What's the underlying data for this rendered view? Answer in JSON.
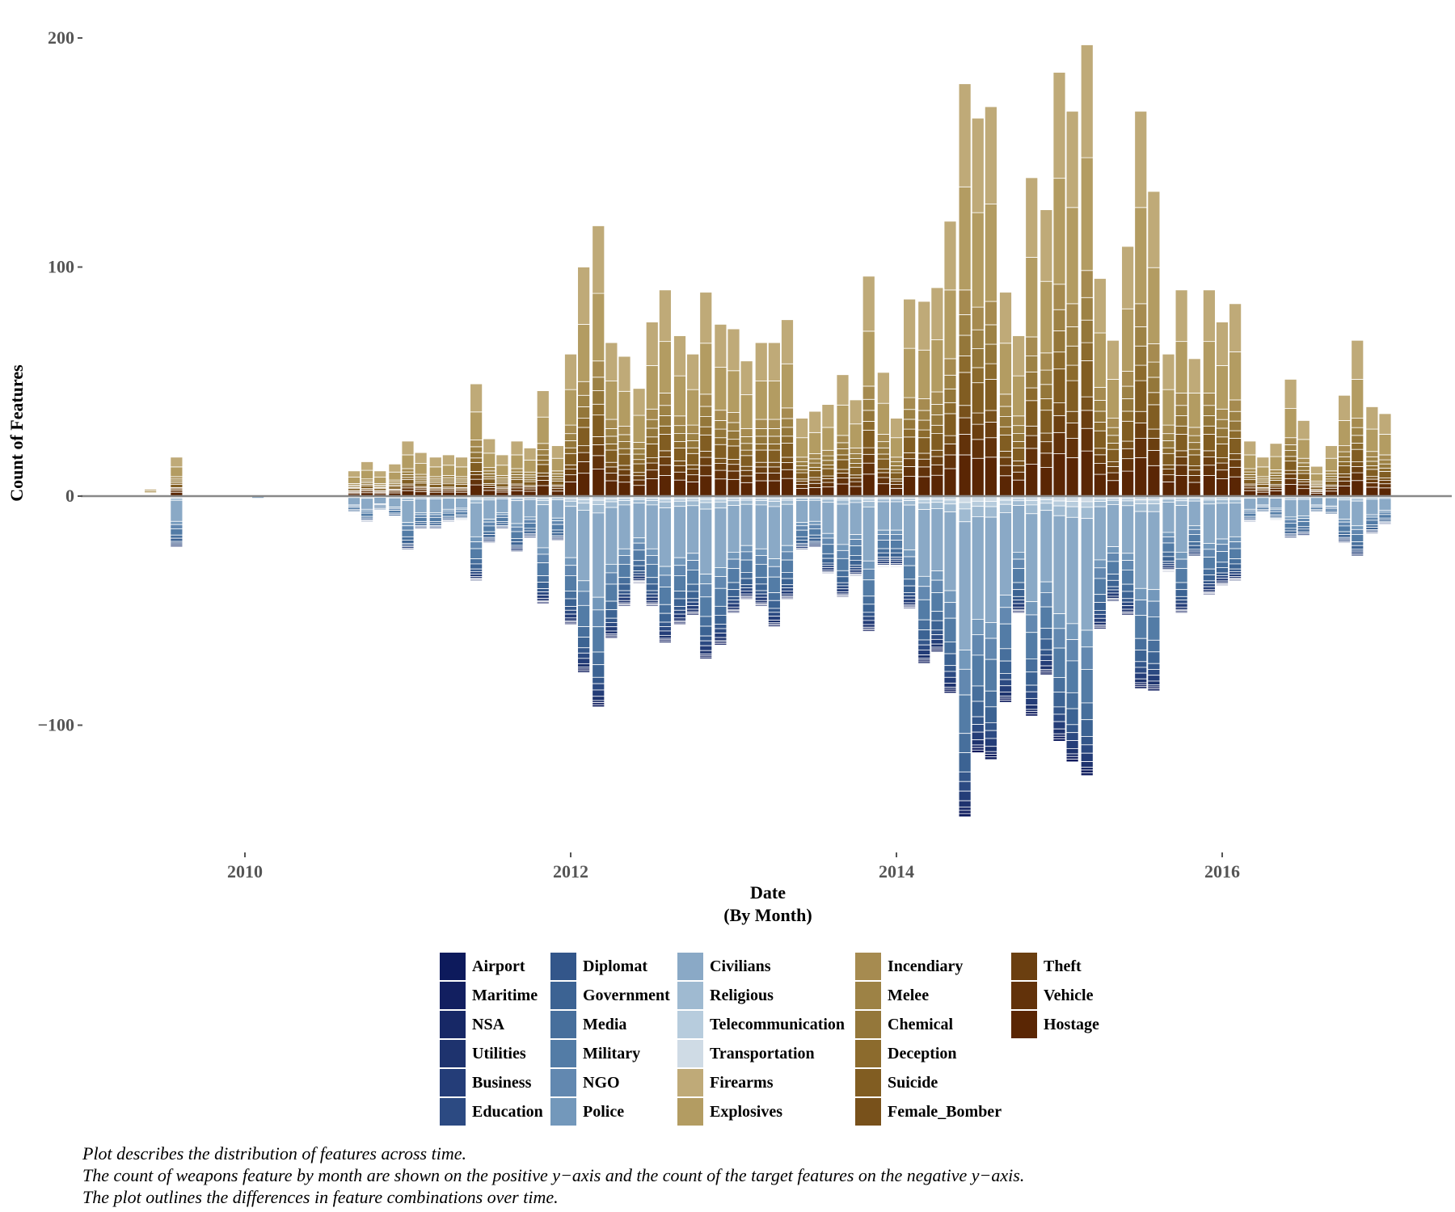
{
  "chart_data": {
    "type": "bar",
    "stacked": true,
    "xlabel": "Date",
    "xlabel_sub": "(By Month)",
    "ylabel": "Count of Features",
    "ylim": [
      -150,
      200
    ],
    "xlim": [
      2008.8,
      2017.3
    ],
    "y_ticks": [
      200,
      100,
      0,
      -100
    ],
    "y_tick_labels": [
      "200",
      "100",
      "0",
      "−100"
    ],
    "x_ticks": [
      2010,
      2012,
      2014,
      2016
    ],
    "x_tick_labels": [
      "2010",
      "2012",
      "2014",
      "2016"
    ],
    "zero_line": true,
    "grid": false,
    "legend_position": "bottom",
    "months": [
      {
        "t": 2009.42,
        "pos": 3,
        "neg": -1
      },
      {
        "t": 2009.58,
        "pos": 17,
        "neg": -23
      },
      {
        "t": 2010.0,
        "pos": 1,
        "neg": -1
      },
      {
        "t": 2010.08,
        "pos": 1,
        "neg": -2
      },
      {
        "t": 2010.67,
        "pos": 11,
        "neg": -8
      },
      {
        "t": 2010.75,
        "pos": 15,
        "neg": -12
      },
      {
        "t": 2010.83,
        "pos": 11,
        "neg": -7
      },
      {
        "t": 2010.92,
        "pos": 14,
        "neg": -10
      },
      {
        "t": 2011.0,
        "pos": 24,
        "neg": -24
      },
      {
        "t": 2011.08,
        "pos": 19,
        "neg": -15
      },
      {
        "t": 2011.17,
        "pos": 17,
        "neg": -15
      },
      {
        "t": 2011.25,
        "pos": 18,
        "neg": -12
      },
      {
        "t": 2011.33,
        "pos": 17,
        "neg": -11
      },
      {
        "t": 2011.42,
        "pos": 49,
        "neg": -37
      },
      {
        "t": 2011.5,
        "pos": 25,
        "neg": -21
      },
      {
        "t": 2011.58,
        "pos": 18,
        "neg": -15
      },
      {
        "t": 2011.67,
        "pos": 24,
        "neg": -25
      },
      {
        "t": 2011.75,
        "pos": 21,
        "neg": -19
      },
      {
        "t": 2011.83,
        "pos": 46,
        "neg": -47
      },
      {
        "t": 2011.92,
        "pos": 22,
        "neg": -20
      },
      {
        "t": 2012.0,
        "pos": 62,
        "neg": -56
      },
      {
        "t": 2012.08,
        "pos": 100,
        "neg": -77
      },
      {
        "t": 2012.17,
        "pos": 118,
        "neg": -92
      },
      {
        "t": 2012.25,
        "pos": 67,
        "neg": -62
      },
      {
        "t": 2012.33,
        "pos": 61,
        "neg": -48
      },
      {
        "t": 2012.42,
        "pos": 47,
        "neg": -38
      },
      {
        "t": 2012.5,
        "pos": 76,
        "neg": -48
      },
      {
        "t": 2012.58,
        "pos": 90,
        "neg": -64
      },
      {
        "t": 2012.67,
        "pos": 70,
        "neg": -56
      },
      {
        "t": 2012.75,
        "pos": 62,
        "neg": -52
      },
      {
        "t": 2012.83,
        "pos": 89,
        "neg": -71
      },
      {
        "t": 2012.92,
        "pos": 75,
        "neg": -65
      },
      {
        "t": 2013.0,
        "pos": 73,
        "neg": -51
      },
      {
        "t": 2013.08,
        "pos": 59,
        "neg": -45
      },
      {
        "t": 2013.17,
        "pos": 67,
        "neg": -48
      },
      {
        "t": 2013.25,
        "pos": 67,
        "neg": -57
      },
      {
        "t": 2013.33,
        "pos": 77,
        "neg": -45
      },
      {
        "t": 2013.42,
        "pos": 34,
        "neg": -24
      },
      {
        "t": 2013.5,
        "pos": 37,
        "neg": -23
      },
      {
        "t": 2013.58,
        "pos": 40,
        "neg": -34
      },
      {
        "t": 2013.67,
        "pos": 53,
        "neg": -44
      },
      {
        "t": 2013.75,
        "pos": 42,
        "neg": -35
      },
      {
        "t": 2013.83,
        "pos": 96,
        "neg": -59
      },
      {
        "t": 2013.92,
        "pos": 54,
        "neg": -31
      },
      {
        "t": 2014.0,
        "pos": 34,
        "neg": -31
      },
      {
        "t": 2014.08,
        "pos": 86,
        "neg": -49
      },
      {
        "t": 2014.17,
        "pos": 85,
        "neg": -73
      },
      {
        "t": 2014.25,
        "pos": 91,
        "neg": -68
      },
      {
        "t": 2014.33,
        "pos": 120,
        "neg": -86
      },
      {
        "t": 2014.42,
        "pos": 180,
        "neg": -140
      },
      {
        "t": 2014.5,
        "pos": 165,
        "neg": -112
      },
      {
        "t": 2014.58,
        "pos": 170,
        "neg": -115
      },
      {
        "t": 2014.67,
        "pos": 89,
        "neg": -90
      },
      {
        "t": 2014.75,
        "pos": 70,
        "neg": -51
      },
      {
        "t": 2014.83,
        "pos": 139,
        "neg": -96
      },
      {
        "t": 2014.92,
        "pos": 125,
        "neg": -78
      },
      {
        "t": 2015.0,
        "pos": 185,
        "neg": -107
      },
      {
        "t": 2015.08,
        "pos": 168,
        "neg": -116
      },
      {
        "t": 2015.17,
        "pos": 197,
        "neg": -122
      },
      {
        "t": 2015.25,
        "pos": 95,
        "neg": -58
      },
      {
        "t": 2015.33,
        "pos": 68,
        "neg": -46
      },
      {
        "t": 2015.42,
        "pos": 109,
        "neg": -52
      },
      {
        "t": 2015.5,
        "pos": 168,
        "neg": -84
      },
      {
        "t": 2015.58,
        "pos": 133,
        "neg": -85
      },
      {
        "t": 2015.67,
        "pos": 62,
        "neg": -33
      },
      {
        "t": 2015.75,
        "pos": 90,
        "neg": -51
      },
      {
        "t": 2015.83,
        "pos": 60,
        "neg": -27
      },
      {
        "t": 2015.92,
        "pos": 90,
        "neg": -43
      },
      {
        "t": 2016.0,
        "pos": 76,
        "neg": -39
      },
      {
        "t": 2016.08,
        "pos": 84,
        "neg": -37
      },
      {
        "t": 2016.17,
        "pos": 24,
        "neg": -12
      },
      {
        "t": 2016.25,
        "pos": 17,
        "neg": -8
      },
      {
        "t": 2016.33,
        "pos": 23,
        "neg": -11
      },
      {
        "t": 2016.42,
        "pos": 51,
        "neg": -19
      },
      {
        "t": 2016.5,
        "pos": 33,
        "neg": -18
      },
      {
        "t": 2016.58,
        "pos": 13,
        "neg": -8
      },
      {
        "t": 2016.67,
        "pos": 22,
        "neg": -9
      },
      {
        "t": 2016.75,
        "pos": 44,
        "neg": -21
      },
      {
        "t": 2016.83,
        "pos": 68,
        "neg": -27
      },
      {
        "t": 2016.92,
        "pos": 39,
        "neg": -17
      },
      {
        "t": 2017.0,
        "pos": 36,
        "neg": -13
      }
    ],
    "legend": [
      {
        "name": "Airport",
        "color": "#0d1a5c"
      },
      {
        "name": "Maritime",
        "color": "#121f60"
      },
      {
        "name": "NSA",
        "color": "#172866"
      },
      {
        "name": "Utilities",
        "color": "#1e336e"
      },
      {
        "name": "Business",
        "color": "#243d78"
      },
      {
        "name": "Education",
        "color": "#2c4a82"
      },
      {
        "name": "Diplomat",
        "color": "#33568a"
      },
      {
        "name": "Government",
        "color": "#3c6393"
      },
      {
        "name": "Media",
        "color": "#476f9c"
      },
      {
        "name": "Military",
        "color": "#537ca6"
      },
      {
        "name": "NGO",
        "color": "#6288b0"
      },
      {
        "name": "Police",
        "color": "#7398bb"
      },
      {
        "name": "Civilians",
        "color": "#8aa9c6"
      },
      {
        "name": "Religious",
        "color": "#9fbad1"
      },
      {
        "name": "Telecommunication",
        "color": "#b7ccdd"
      },
      {
        "name": "Transportation",
        "color": "#cfdbe5"
      },
      {
        "name": "Firearms",
        "color": "#bfaa78"
      },
      {
        "name": "Explosives",
        "color": "#b39c62"
      },
      {
        "name": "Incendiary",
        "color": "#a68b50"
      },
      {
        "name": "Melee",
        "color": "#9d8245"
      },
      {
        "name": "Chemical",
        "color": "#94773a"
      },
      {
        "name": "Deception",
        "color": "#8c6b2d"
      },
      {
        "name": "Suicide",
        "color": "#815d22"
      },
      {
        "name": "Female_Bomber",
        "color": "#78511b"
      },
      {
        "name": "Theft",
        "color": "#6b3f10"
      },
      {
        "name": "Vehicle",
        "color": "#62320a"
      },
      {
        "name": "Hostage",
        "color": "#5a2604"
      }
    ],
    "caption": [
      "Plot describes the distribution of features across time.",
      "The count of weapons feature by month are shown on the positive y−axis and the count of the target features on the negative y−axis.",
      "The plot outlines the differences in feature combinations over time."
    ]
  }
}
